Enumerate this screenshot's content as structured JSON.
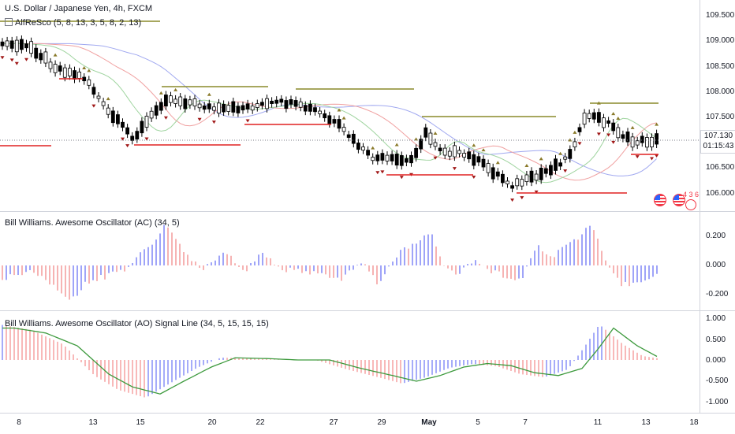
{
  "header": {
    "symbol_title": "U.S. Dollar / Japanese Yen, 4h, FXCM",
    "indicator_label": "AlfReSco (5, 8, 13, 3, 5, 8, 2, 13)"
  },
  "price_axis": {
    "labels": [
      "109.500",
      "109.000",
      "108.500",
      "108.000",
      "107.500",
      "106.500",
      "106.000"
    ],
    "current_price": "107.130",
    "countdown": "01:15:43"
  },
  "panes": {
    "ac": {
      "title": "Bill Williams. Awesome Oscillator (AC) (34, 5)",
      "labels": [
        "0.200",
        "0.000",
        "-0.200"
      ]
    },
    "ao": {
      "title": "Bill Williams. Awesome Oscillator (AO) Signal Line (34, 5, 15, 15, 15)",
      "labels": [
        "1.000",
        "0.500",
        "0.000",
        "-0.500",
        "-1.000"
      ]
    }
  },
  "time_axis": {
    "labels": [
      "8",
      "13",
      "15",
      "20",
      "22",
      "27",
      "29",
      "May",
      "5",
      "7",
      "11",
      "13",
      "18"
    ]
  },
  "event_badge": "4 3 6",
  "colors": {
    "up": "#6b74f5",
    "down": "#f28a8a",
    "candle": "#000000",
    "signal": "#3d9a3d",
    "fractal_up": "#8a7a2a",
    "fractal_down": "#a01818",
    "level_green": "#8a8a2a",
    "level_red": "#e02020"
  },
  "icons": [
    "eye-icon",
    "us-flag-icon",
    "jp-flag-icon"
  ]
}
